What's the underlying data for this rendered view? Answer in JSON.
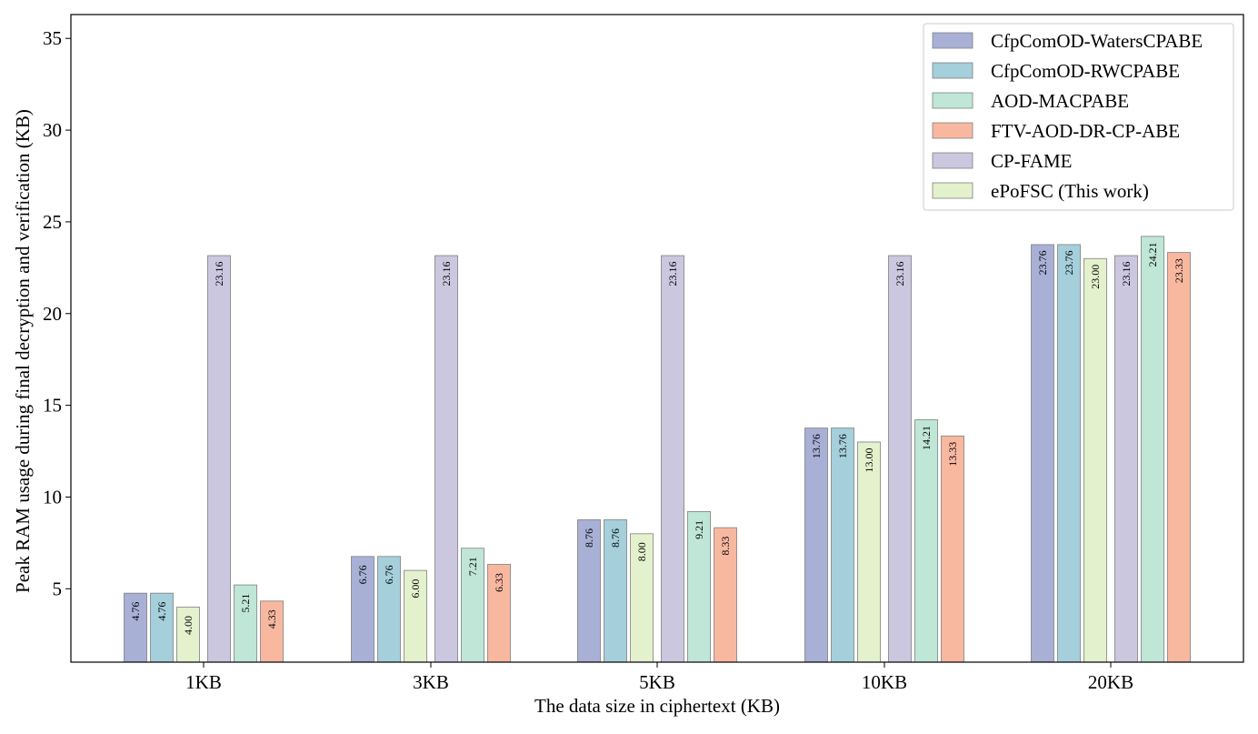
{
  "chart_data": {
    "type": "bar",
    "title": "",
    "xlabel": "The data size in ciphertext (KB)",
    "ylabel": "Peak RAM usage during final decryption and verification (KB)",
    "categories": [
      "1KB",
      "3KB",
      "5KB",
      "10KB",
      "20KB"
    ],
    "ylim": [
      1,
      36.3
    ],
    "yticks": [
      5,
      10,
      15,
      20,
      25,
      30,
      35
    ],
    "grid": false,
    "legend_position": "top-right",
    "bar_order": [
      "CfpComOD-WatersCPABE",
      "CfpComOD-RWCPABE",
      "ePoFSC (This work)",
      "CP-FAME",
      "AOD-MACPABE",
      "FTV-AOD-DR-CP-ABE"
    ],
    "series": [
      {
        "name": "CfpComOD-WatersCPABE",
        "color": "#a8b0d6",
        "values": [
          4.76,
          6.76,
          8.76,
          13.76,
          23.76
        ],
        "labels": [
          "4.76",
          "6.76",
          "8.76",
          "13.76",
          "23.76"
        ]
      },
      {
        "name": "CfpComOD-RWCPABE",
        "color": "#a4cfdb",
        "values": [
          4.76,
          6.76,
          8.76,
          13.76,
          23.76
        ],
        "labels": [
          "4.76",
          "6.76",
          "8.76",
          "13.76",
          "23.76"
        ]
      },
      {
        "name": "AOD-MACPABE",
        "color": "#bfe6d7",
        "values": [
          5.21,
          7.21,
          9.21,
          14.21,
          24.21
        ],
        "labels": [
          "5.21",
          "7.21",
          "9.21",
          "14.21",
          "24.21"
        ]
      },
      {
        "name": "FTV-AOD-DR-CP-ABE",
        "color": "#f8b8a0",
        "values": [
          4.33,
          6.33,
          8.33,
          13.33,
          23.33
        ],
        "labels": [
          "4.33",
          "6.33",
          "8.33",
          "13.33",
          "23.33"
        ]
      },
      {
        "name": "CP-FAME",
        "color": "#cbc7df",
        "values": [
          23.16,
          23.16,
          23.16,
          23.16,
          23.16
        ],
        "labels": [
          "23.16",
          "23.16",
          "23.16",
          "23.16",
          "23.16"
        ]
      },
      {
        "name": "ePoFSC (This work)",
        "color": "#e3f1cd",
        "values": [
          4.0,
          6.0,
          8.0,
          13.0,
          23.0
        ],
        "labels": [
          "4.00",
          "6.00",
          "8.00",
          "13.00",
          "23.00"
        ]
      }
    ]
  }
}
